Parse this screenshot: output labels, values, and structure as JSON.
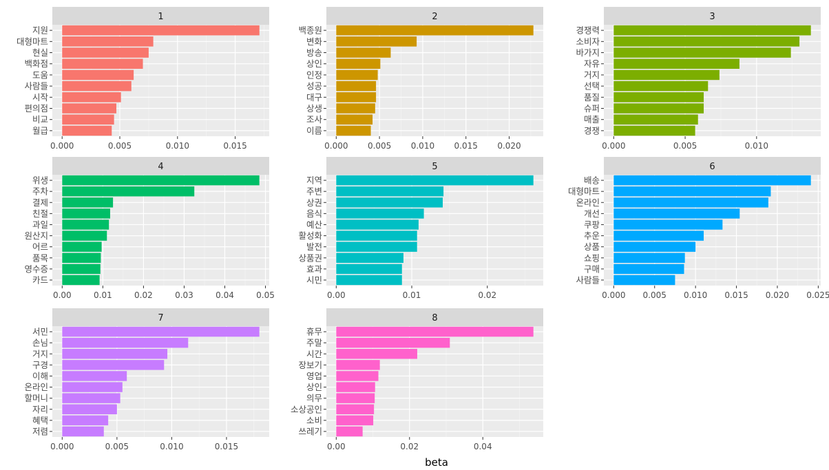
{
  "chart_data": {
    "type": "bar",
    "orientation": "horizontal",
    "facets": "wrap",
    "xlabel": "beta",
    "ylabel": "",
    "grid": true,
    "panels": [
      {
        "title": "1",
        "color": "#F8766D",
        "categories": [
          "지원",
          "대형마트",
          "현실",
          "백화점",
          "도움",
          "사람들",
          "시작",
          "편의점",
          "비교",
          "월급"
        ],
        "values": [
          0.0171,
          0.0079,
          0.0075,
          0.007,
          0.0062,
          0.006,
          0.0051,
          0.0047,
          0.0045,
          0.0043
        ],
        "xlim": [
          -0.00085,
          0.01795
        ],
        "ticks": [
          0,
          0.005,
          0.01,
          0.015
        ],
        "tick_labels": [
          "0.000",
          "0.005",
          "0.010",
          "0.015"
        ]
      },
      {
        "title": "2",
        "color": "#CD9600",
        "categories": [
          "백종원",
          "변화",
          "방송",
          "상인",
          "인정",
          "성공",
          "대구",
          "상생",
          "조사",
          "이름"
        ],
        "values": [
          0.0228,
          0.0093,
          0.0063,
          0.0051,
          0.0048,
          0.0046,
          0.0046,
          0.0045,
          0.0042,
          0.004
        ],
        "xlim": [
          -0.00114,
          0.02394
        ],
        "ticks": [
          0,
          0.005,
          0.01,
          0.015,
          0.02
        ],
        "tick_labels": [
          "0.000",
          "0.005",
          "0.010",
          "0.015",
          "0.020"
        ]
      },
      {
        "title": "3",
        "color": "#7CAE00",
        "categories": [
          "경쟁력",
          "소비자",
          "바가지",
          "자유",
          "거지",
          "선택",
          "품질",
          "슈퍼",
          "매출",
          "경쟁"
        ],
        "values": [
          0.0138,
          0.013,
          0.0124,
          0.0088,
          0.0074,
          0.0066,
          0.0063,
          0.0063,
          0.0059,
          0.0057
        ],
        "xlim": [
          -0.00069,
          0.01449
        ],
        "ticks": [
          0,
          0.005,
          0.01
        ],
        "tick_labels": [
          "0.000",
          "0.005",
          "0.010"
        ]
      },
      {
        "title": "4",
        "color": "#00BE67",
        "categories": [
          "위생",
          "주차",
          "결제",
          "친절",
          "과일",
          "원산지",
          "어르",
          "품목",
          "영수증",
          "카드"
        ],
        "values": [
          0.0485,
          0.0325,
          0.0125,
          0.0118,
          0.0115,
          0.011,
          0.0097,
          0.0095,
          0.0094,
          0.0092
        ],
        "xlim": [
          -0.002425,
          0.050925
        ],
        "ticks": [
          0,
          0.01,
          0.02,
          0.03,
          0.04,
          0.05
        ],
        "tick_labels": [
          "0.00",
          "0.01",
          "0.02",
          "0.03",
          "0.04",
          "0.05"
        ]
      },
      {
        "title": "5",
        "color": "#00BFC4",
        "categories": [
          "지역",
          "주변",
          "상권",
          "음식",
          "예산",
          "활성화",
          "발전",
          "상품권",
          "효과",
          "시민"
        ],
        "values": [
          0.0261,
          0.0142,
          0.0141,
          0.0116,
          0.0109,
          0.0107,
          0.0107,
          0.0089,
          0.0087,
          0.0087
        ],
        "xlim": [
          -0.001305,
          0.027405
        ],
        "ticks": [
          0,
          0.01,
          0.02
        ],
        "tick_labels": [
          "0.00",
          "0.01",
          "0.02"
        ]
      },
      {
        "title": "6",
        "color": "#00A9FF",
        "categories": [
          "배송",
          "대형마트",
          "온라인",
          "개선",
          "쿠팡",
          "추운",
          "상품",
          "쇼핑",
          "구매",
          "사람들"
        ],
        "values": [
          0.0241,
          0.0192,
          0.0189,
          0.0154,
          0.0133,
          0.011,
          0.01,
          0.0087,
          0.0086,
          0.0075
        ],
        "xlim": [
          -0.001205,
          0.025305
        ],
        "ticks": [
          0,
          0.005,
          0.01,
          0.015,
          0.02,
          0.025
        ],
        "tick_labels": [
          "0.000",
          "0.005",
          "0.010",
          "0.015",
          "0.020",
          "0.025"
        ]
      },
      {
        "title": "7",
        "color": "#C77CFF",
        "categories": [
          "서민",
          "손님",
          "거지",
          "구경",
          "이해",
          "온라인",
          "할머니",
          "자리",
          "혜택",
          "저렴"
        ],
        "values": [
          0.018,
          0.0115,
          0.0096,
          0.0093,
          0.0059,
          0.0055,
          0.0053,
          0.005,
          0.0042,
          0.0038
        ],
        "xlim": [
          -0.0009,
          0.0189
        ],
        "ticks": [
          0,
          0.005,
          0.01,
          0.015
        ],
        "tick_labels": [
          "0.000",
          "0.005",
          "0.010",
          "0.015"
        ]
      },
      {
        "title": "8",
        "color": "#FF61CC",
        "categories": [
          "휴무",
          "주말",
          "시간",
          "장보기",
          "영업",
          "상인",
          "의무",
          "소상공인",
          "소비",
          "쓰레기"
        ],
        "values": [
          0.0538,
          0.031,
          0.0221,
          0.0119,
          0.0115,
          0.0106,
          0.0105,
          0.0103,
          0.0101,
          0.0072
        ],
        "xlim": [
          -0.00269,
          0.05649
        ],
        "ticks": [
          0,
          0.02,
          0.04
        ],
        "tick_labels": [
          "0.00",
          "0.02",
          "0.04"
        ]
      }
    ]
  }
}
